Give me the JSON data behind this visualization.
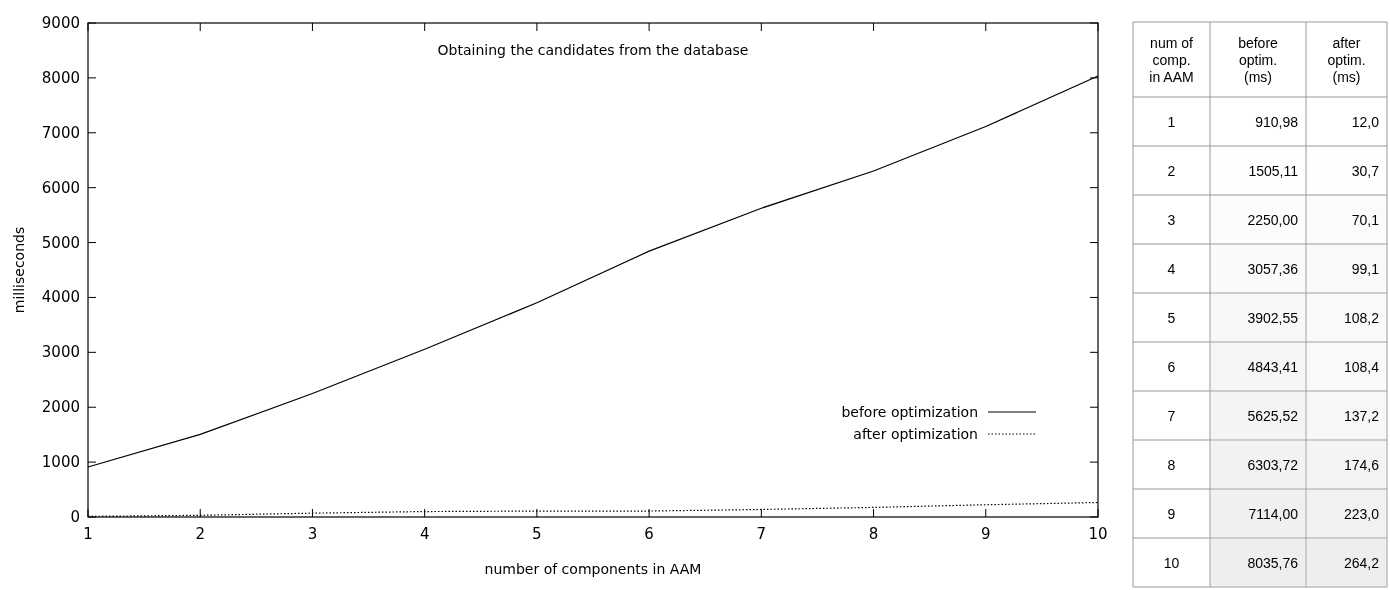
{
  "chart_data": [
    {
      "type": "line",
      "title": "Obtaining the candidates from the database",
      "xlabel": "number of components in AAM",
      "ylabel": "milliseconds",
      "x": [
        1,
        2,
        3,
        4,
        5,
        6,
        7,
        8,
        9,
        10
      ],
      "xlim": [
        1,
        10
      ],
      "xticks": [
        1,
        2,
        3,
        4,
        5,
        6,
        7,
        8,
        9,
        10
      ],
      "ylim": [
        0,
        9000
      ],
      "yticks": [
        0,
        1000,
        2000,
        3000,
        4000,
        5000,
        6000,
        7000,
        8000,
        9000
      ],
      "legend": "bottom right",
      "grid": false,
      "marker": "none",
      "series": [
        {
          "name": "before optimization",
          "color": "#000000",
          "line_style": "solid",
          "values": [
            910.98,
            1505.11,
            2250.0,
            3057.36,
            3902.55,
            4843.41,
            5625.52,
            6303.72,
            7114.0,
            8035.76
          ]
        },
        {
          "name": "after optimization",
          "color": "#000000",
          "line_style": "dotted",
          "values": [
            12.0,
            30.7,
            70.1,
            99.1,
            108.2,
            108.4,
            137.2,
            174.6,
            223.0,
            264.2
          ]
        }
      ]
    },
    {
      "type": "heatmap",
      "ylabel": "num of comp. in AAM",
      "categories": [
        "before optim. (ms)",
        "after optim. (ms)"
      ],
      "y_categories": [
        "1",
        "2",
        "3",
        "4",
        "5",
        "6",
        "7",
        "8",
        "9",
        "10"
      ],
      "cells": [
        [
          910.98,
          12.0
        ],
        [
          1505.11,
          30.7
        ],
        [
          2250.0,
          70.1
        ],
        [
          3057.36,
          99.1
        ],
        [
          3902.55,
          108.2
        ],
        [
          4843.41,
          108.4
        ],
        [
          5625.52,
          137.2
        ],
        [
          6303.72,
          174.6
        ],
        [
          7114.0,
          223.0
        ],
        [
          8035.76,
          264.2
        ]
      ],
      "cell_labels": [
        [
          "910,98",
          "12,0"
        ],
        [
          "1505,11",
          "30,7"
        ],
        [
          "2250,00",
          "70,1"
        ],
        [
          "3057,36",
          "99,1"
        ],
        [
          "3902,55",
          "108,2"
        ],
        [
          "4843,41",
          "108,4"
        ],
        [
          "5625,52",
          "137,2"
        ],
        [
          "6303,72",
          "174,6"
        ],
        [
          "7114,00",
          "223,0"
        ],
        [
          "8035,76",
          "264,2"
        ]
      ]
    }
  ]
}
